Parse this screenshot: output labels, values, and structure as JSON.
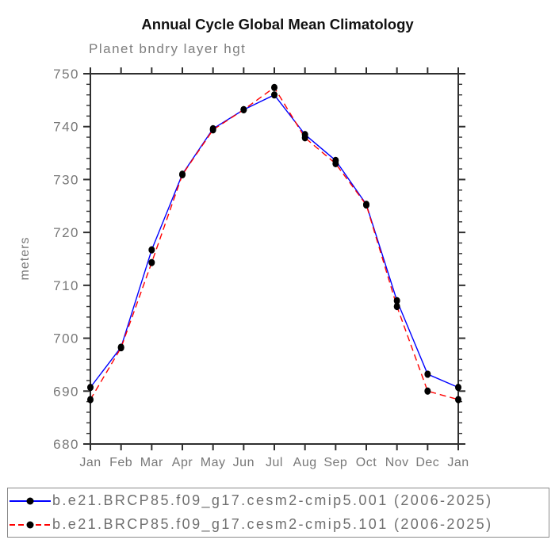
{
  "title": "Annual Cycle Global Mean Climatology",
  "subtitle": "Planet bndry layer hgt",
  "colors": {
    "series1_line": "#0000ff",
    "series2_line": "#ff0000",
    "marker": "#000000",
    "axis": "#2f2f2f",
    "tick_label_text": "#787878",
    "legend_text": "#6f6f6f",
    "legend_border": "#8a8a8a"
  },
  "chart_data": {
    "type": "line",
    "title": "Annual Cycle Global Mean Climatology",
    "subtitle": "Planet bndry layer hgt",
    "xlabel": "",
    "ylabel": "meters",
    "categories": [
      "Jan",
      "Feb",
      "Mar",
      "Apr",
      "May",
      "Jun",
      "Jul",
      "Aug",
      "Sep",
      "Oct",
      "Nov",
      "Dec",
      "Jan"
    ],
    "ylim": [
      680,
      750
    ],
    "y_major_step": 10,
    "y_minor_step": 2,
    "y_tick_labels": [
      "680",
      "690",
      "700",
      "710",
      "720",
      "730",
      "740",
      "750"
    ],
    "grid": false,
    "legend_position": "bottom",
    "series": [
      {
        "name": "b.e21.BRCP85.f09_g17.cesm2-cmip5.001 (2006-2025)",
        "color": "#0000ff",
        "style": "solid",
        "marker": "black-dot",
        "values": [
          690.7,
          698.3,
          716.7,
          731.0,
          739.6,
          743.2,
          746.0,
          738.5,
          733.6,
          725.3,
          707.1,
          693.2,
          690.7
        ]
      },
      {
        "name": "b.e21.BRCP85.f09_g17.cesm2-cmip5.101 (2006-2025)",
        "color": "#ff0000",
        "style": "dashed",
        "marker": "black-dot",
        "values": [
          688.4,
          698.2,
          714.3,
          730.9,
          739.4,
          743.2,
          747.4,
          737.9,
          733.0,
          725.2,
          706.0,
          690.0,
          688.4
        ]
      }
    ]
  },
  "legend": {
    "items": [
      "b.e21.BRCP85.f09_g17.cesm2-cmip5.001 (2006-2025)",
      "b.e21.BRCP85.f09_g17.cesm2-cmip5.101 (2006-2025)"
    ]
  }
}
